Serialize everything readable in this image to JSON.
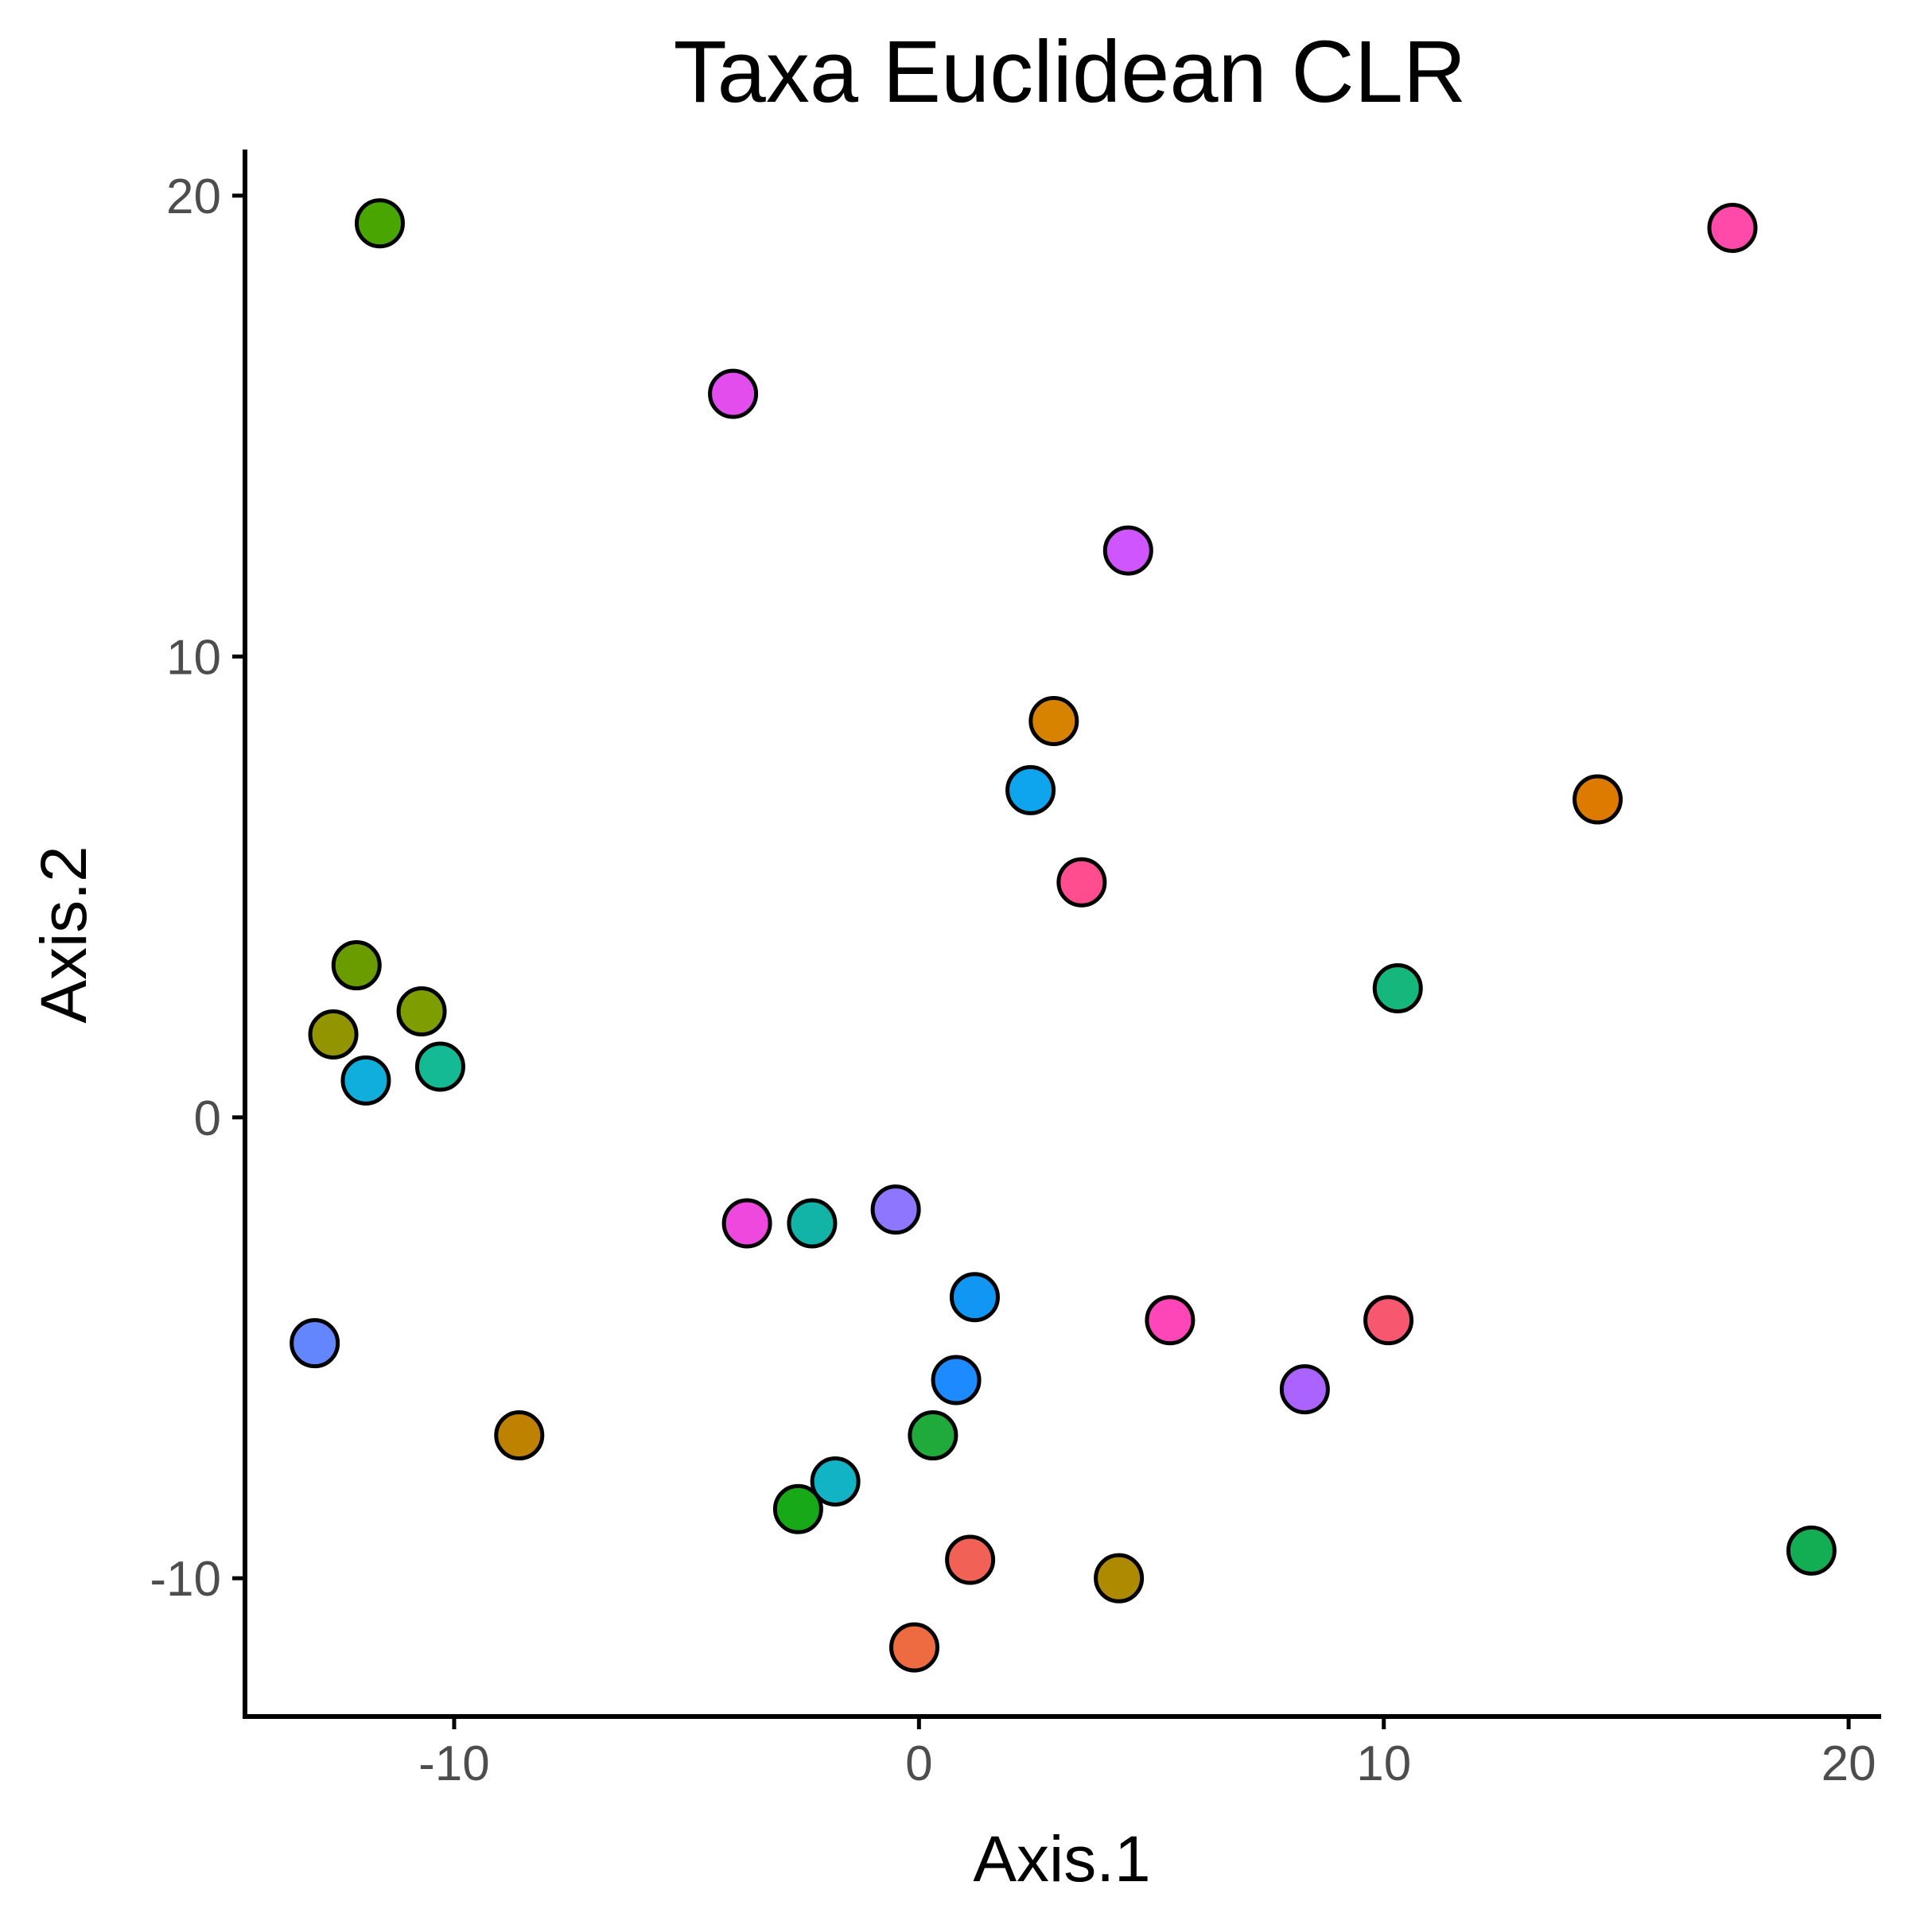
{
  "chart_data": {
    "type": "scatter",
    "title": "Taxa Euclidean CLR",
    "xlabel": "Axis.1",
    "ylabel": "Axis.2",
    "xlim": [
      -14.5,
      20.7
    ],
    "ylim": [
      -13,
      21
    ],
    "xticks": [
      -10,
      0,
      10,
      20
    ],
    "xtick_labels": [
      "-10",
      "0",
      "10",
      "20"
    ],
    "yticks": [
      -10,
      0,
      10,
      20
    ],
    "ytick_labels": [
      "-10",
      "0",
      "10",
      "20"
    ],
    "grid": false,
    "legend": "none",
    "points": [
      {
        "x": -11.6,
        "y": 19.4,
        "color": "#49A600"
      },
      {
        "x": 17.5,
        "y": 19.3,
        "color": "#FF4AAA"
      },
      {
        "x": -4.0,
        "y": 15.7,
        "color": "#E34DEE"
      },
      {
        "x": 4.5,
        "y": 12.3,
        "color": "#CF56FF"
      },
      {
        "x": 2.9,
        "y": 8.6,
        "color": "#D88300"
      },
      {
        "x": 2.4,
        "y": 7.1,
        "color": "#0EA5EE"
      },
      {
        "x": 14.6,
        "y": 6.9,
        "color": "#DD7A00"
      },
      {
        "x": 3.5,
        "y": 5.1,
        "color": "#FF4D8F"
      },
      {
        "x": -12.1,
        "y": 3.3,
        "color": "#6A9C00"
      },
      {
        "x": -10.7,
        "y": 2.3,
        "color": "#7D9D00"
      },
      {
        "x": -12.6,
        "y": 1.8,
        "color": "#929400"
      },
      {
        "x": -10.3,
        "y": 1.1,
        "color": "#14BA93"
      },
      {
        "x": -11.9,
        "y": 0.8,
        "color": "#10AEDB"
      },
      {
        "x": 10.3,
        "y": 2.8,
        "color": "#15B77D"
      },
      {
        "x": -0.5,
        "y": -2.0,
        "color": "#8F76FF"
      },
      {
        "x": -3.7,
        "y": -2.3,
        "color": "#EE48DE"
      },
      {
        "x": -2.3,
        "y": -2.3,
        "color": "#12B4A8"
      },
      {
        "x": 1.2,
        "y": -3.9,
        "color": "#1296F3"
      },
      {
        "x": 5.4,
        "y": -4.4,
        "color": "#FF46B8"
      },
      {
        "x": 10.1,
        "y": -4.4,
        "color": "#F8586F"
      },
      {
        "x": 0.8,
        "y": -5.7,
        "color": "#1D8BFF"
      },
      {
        "x": 8.3,
        "y": -5.9,
        "color": "#AB63FF"
      },
      {
        "x": -13.0,
        "y": -4.9,
        "color": "#6386FF"
      },
      {
        "x": 0.3,
        "y": -6.9,
        "color": "#20AA3C"
      },
      {
        "x": -8.6,
        "y": -6.9,
        "color": "#BE8100"
      },
      {
        "x": -1.8,
        "y": -7.9,
        "color": "#13B3C6"
      },
      {
        "x": -2.6,
        "y": -8.5,
        "color": "#18A918"
      },
      {
        "x": 1.1,
        "y": -9.6,
        "color": "#F26155"
      },
      {
        "x": 4.3,
        "y": -10.0,
        "color": "#AD8A00"
      },
      {
        "x": 19.2,
        "y": -9.4,
        "color": "#13AE54"
      },
      {
        "x": -0.1,
        "y": -11.5,
        "color": "#EE6A40"
      }
    ]
  }
}
